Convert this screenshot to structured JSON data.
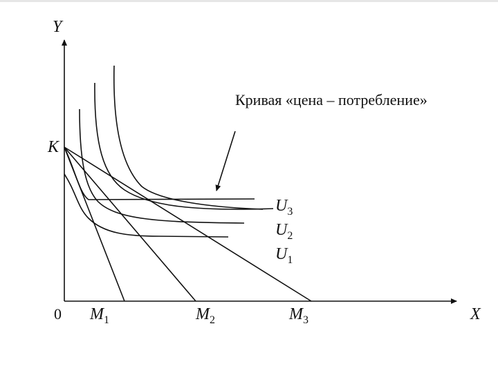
{
  "caption": "Кривая «цена – потребление»",
  "axes": {
    "y_label": "Y",
    "x_label": "X",
    "origin_label": "0"
  },
  "budget_intercept_label": "K",
  "budget_lines": [
    {
      "base": "M",
      "sub": "1"
    },
    {
      "base": "M",
      "sub": "2"
    },
    {
      "base": "M",
      "sub": "3"
    }
  ],
  "indifference_curves": [
    {
      "base": "U",
      "sub": "3"
    },
    {
      "base": "U",
      "sub": "2"
    },
    {
      "base": "U",
      "sub": "1"
    }
  ]
}
